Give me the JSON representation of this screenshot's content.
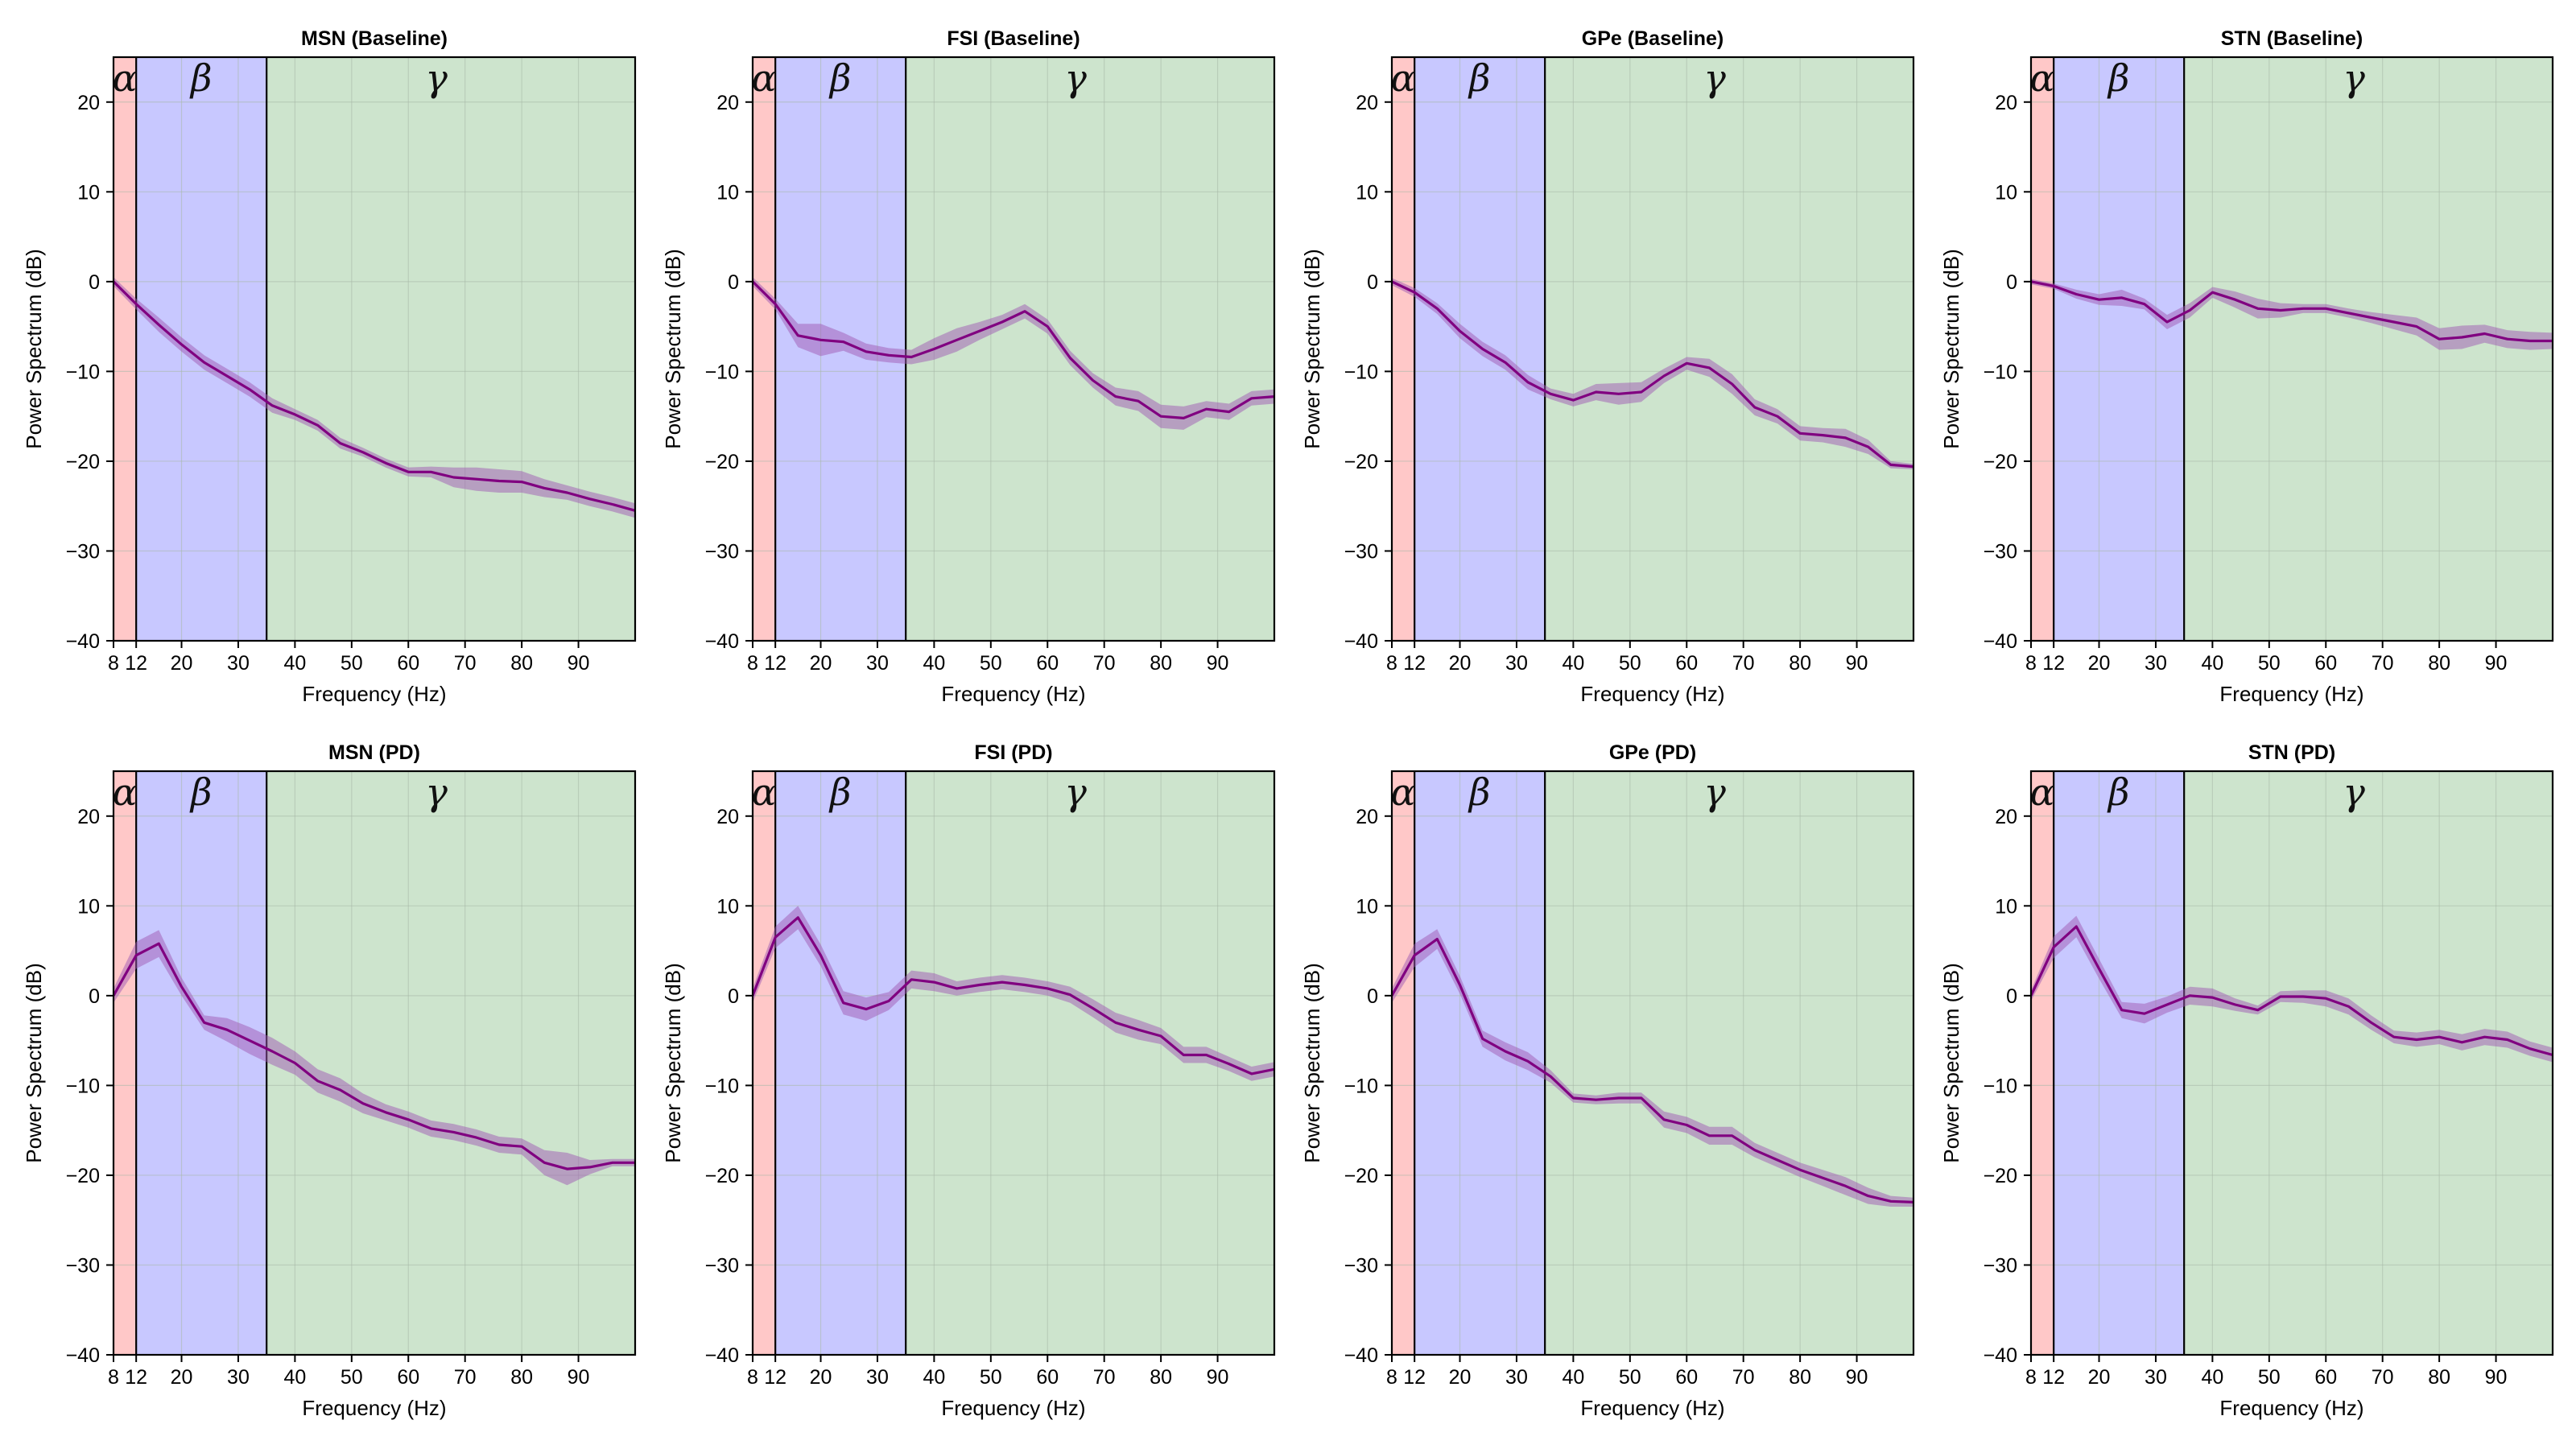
{
  "colors": {
    "alpha_band": "#ffc8c8",
    "beta_band": "#c8c8ff",
    "gamma_band": "#cde4cd",
    "line": "#800080",
    "shade": "#a05ab4",
    "grid": "#a9b9a9"
  },
  "band_labels": [
    "α",
    "β",
    "γ"
  ],
  "axes": {
    "xlabel": "Frequency (Hz)",
    "ylabel": "Power Spectrum (dB)",
    "xtick_labels": [
      "8",
      "12",
      "20",
      "30",
      "40",
      "50",
      "60",
      "70",
      "80",
      "90"
    ],
    "ytick_labels": [
      "20",
      "10",
      "0",
      "−10",
      "−20",
      "−30",
      "−40"
    ]
  },
  "chart_data": [
    {
      "type": "line",
      "title": "MSN (Baseline)",
      "xlabel": "Frequency (Hz)",
      "ylabel": "Power Spectrum (dB)",
      "xlim": [
        8,
        100
      ],
      "ylim": [
        -40,
        25
      ],
      "grid": true,
      "bands": [
        {
          "label": "α",
          "range": [
            8,
            12
          ]
        },
        {
          "label": "β",
          "range": [
            12,
            35
          ]
        },
        {
          "label": "γ",
          "range": [
            35,
            100
          ]
        }
      ],
      "series": [
        {
          "x": [
            8,
            12,
            16,
            20,
            24,
            28,
            32,
            36,
            40,
            44,
            48,
            52,
            56,
            60,
            64,
            68,
            72,
            76,
            80,
            84,
            88,
            92,
            96,
            100
          ],
          "y": [
            0,
            -2.5,
            -4.8,
            -7,
            -9,
            -10.5,
            -12,
            -13.8,
            -14.8,
            -16,
            -18,
            -19,
            -20.2,
            -21.2,
            -21.2,
            -21.8,
            -22,
            -22.2,
            -22.3,
            -23,
            -23.5,
            -24.2,
            -24.8,
            -25.5
          ],
          "spread": [
            0.5,
            0.6,
            0.8,
            0.8,
            0.8,
            0.8,
            0.8,
            0.8,
            0.6,
            0.6,
            0.6,
            0.5,
            0.5,
            0.5,
            0.6,
            1.1,
            1.3,
            1.3,
            1.2,
            1,
            0.8,
            0.8,
            0.8,
            0.8
          ]
        }
      ]
    },
    {
      "type": "line",
      "title": "FSI (Baseline)",
      "xlabel": "Frequency (Hz)",
      "ylabel": "Power Spectrum (dB)",
      "xlim": [
        8,
        100
      ],
      "ylim": [
        -40,
        25
      ],
      "grid": true,
      "bands": [
        {
          "label": "α",
          "range": [
            8,
            12
          ]
        },
        {
          "label": "β",
          "range": [
            12,
            35
          ]
        },
        {
          "label": "γ",
          "range": [
            35,
            100
          ]
        }
      ],
      "series": [
        {
          "x": [
            8,
            12,
            16,
            20,
            24,
            28,
            32,
            36,
            40,
            44,
            48,
            52,
            56,
            60,
            64,
            68,
            72,
            76,
            80,
            84,
            88,
            92,
            96,
            100
          ],
          "y": [
            0,
            -2.5,
            -6,
            -6.5,
            -6.7,
            -7.8,
            -8.2,
            -8.4,
            -7.5,
            -6.5,
            -5.5,
            -4.5,
            -3.3,
            -5,
            -8.5,
            -11,
            -12.8,
            -13.3,
            -15,
            -15.2,
            -14.2,
            -14.5,
            -13,
            -12.8
          ],
          "spread": [
            0.5,
            0.6,
            1.3,
            1.8,
            1,
            0.9,
            0.8,
            0.8,
            1.2,
            1.3,
            1,
            0.8,
            0.8,
            0.8,
            0.8,
            0.8,
            1,
            1.1,
            1.3,
            1.3,
            0.9,
            0.9,
            0.8,
            0.8
          ]
        }
      ]
    },
    {
      "type": "line",
      "title": "GPe (Baseline)",
      "xlabel": "Frequency (Hz)",
      "ylabel": "Power Spectrum (dB)",
      "xlim": [
        8,
        100
      ],
      "ylim": [
        -40,
        25
      ],
      "grid": true,
      "bands": [
        {
          "label": "α",
          "range": [
            8,
            12
          ]
        },
        {
          "label": "β",
          "range": [
            12,
            35
          ]
        },
        {
          "label": "γ",
          "range": [
            35,
            100
          ]
        }
      ],
      "series": [
        {
          "x": [
            8,
            12,
            16,
            20,
            24,
            28,
            32,
            36,
            40,
            44,
            48,
            52,
            56,
            60,
            64,
            68,
            72,
            76,
            80,
            84,
            88,
            92,
            96,
            100
          ],
          "y": [
            0,
            -1.2,
            -3,
            -5.5,
            -7.5,
            -9,
            -11.2,
            -12.5,
            -13.2,
            -12.3,
            -12.5,
            -12.3,
            -10.5,
            -9.1,
            -9.6,
            -11.4,
            -14,
            -15,
            -16.9,
            -17.1,
            -17.4,
            -18.4,
            -20.4,
            -20.6
          ],
          "spread": [
            0.4,
            0.5,
            0.6,
            0.8,
            0.8,
            0.8,
            0.8,
            0.6,
            0.7,
            0.9,
            1.2,
            1.1,
            0.8,
            0.7,
            1,
            1.1,
            0.9,
            0.8,
            0.8,
            0.8,
            1,
            0.8,
            0.4,
            0.3
          ]
        }
      ]
    },
    {
      "type": "line",
      "title": "STN (Baseline)",
      "xlabel": "Frequency (Hz)",
      "ylabel": "Power Spectrum (dB)",
      "xlim": [
        8,
        100
      ],
      "ylim": [
        -40,
        25
      ],
      "grid": true,
      "bands": [
        {
          "label": "α",
          "range": [
            8,
            12
          ]
        },
        {
          "label": "β",
          "range": [
            12,
            35
          ]
        },
        {
          "label": "γ",
          "range": [
            35,
            100
          ]
        }
      ],
      "series": [
        {
          "x": [
            8,
            12,
            16,
            20,
            24,
            28,
            32,
            36,
            40,
            44,
            48,
            52,
            56,
            60,
            64,
            68,
            72,
            76,
            80,
            84,
            88,
            92,
            96,
            100
          ],
          "y": [
            0,
            -0.5,
            -1.4,
            -2,
            -1.8,
            -2.5,
            -4.5,
            -3.2,
            -1.2,
            -2,
            -3,
            -3.2,
            -3,
            -3,
            -3.5,
            -4,
            -4.5,
            -5,
            -6.4,
            -6.2,
            -5.8,
            -6.4,
            -6.6,
            -6.6
          ],
          "spread": [
            0.3,
            0.3,
            0.5,
            0.6,
            0.9,
            0.6,
            0.8,
            0.8,
            0.6,
            0.9,
            1.1,
            0.8,
            0.5,
            0.5,
            0.5,
            0.6,
            0.8,
            1,
            1.2,
            1.3,
            1,
            1,
            1,
            0.9
          ]
        }
      ]
    },
    {
      "type": "line",
      "title": "MSN (PD)",
      "xlabel": "Frequency (Hz)",
      "ylabel": "Power Spectrum (dB)",
      "xlim": [
        8,
        100
      ],
      "ylim": [
        -40,
        25
      ],
      "grid": true,
      "bands": [
        {
          "label": "α",
          "range": [
            8,
            12
          ]
        },
        {
          "label": "β",
          "range": [
            12,
            35
          ]
        },
        {
          "label": "γ",
          "range": [
            35,
            100
          ]
        }
      ],
      "series": [
        {
          "x": [
            8,
            12,
            16,
            20,
            24,
            28,
            32,
            36,
            40,
            44,
            48,
            52,
            56,
            60,
            64,
            68,
            72,
            76,
            80,
            84,
            88,
            92,
            96,
            100
          ],
          "y": [
            0,
            4.5,
            5.8,
            1,
            -3,
            -3.8,
            -5,
            -6.2,
            -7.5,
            -9.5,
            -10.5,
            -12,
            -13,
            -13.8,
            -14.8,
            -15.2,
            -15.8,
            -16.6,
            -16.8,
            -18.6,
            -19.3,
            -19.1,
            -18.6,
            -18.6
          ],
          "spread": [
            0.8,
            1.5,
            1.5,
            1,
            0.8,
            1.3,
            1.5,
            1.5,
            1.3,
            1.3,
            1.3,
            1.1,
            0.9,
            0.9,
            0.9,
            0.9,
            0.9,
            0.9,
            0.9,
            1.4,
            1.8,
            0.8,
            0.4,
            0.4
          ]
        }
      ]
    },
    {
      "type": "line",
      "title": "FSI (PD)",
      "xlabel": "Frequency (Hz)",
      "ylabel": "Power Spectrum (dB)",
      "xlim": [
        8,
        100
      ],
      "ylim": [
        -40,
        25
      ],
      "grid": true,
      "bands": [
        {
          "label": "α",
          "range": [
            8,
            12
          ]
        },
        {
          "label": "β",
          "range": [
            12,
            35
          ]
        },
        {
          "label": "γ",
          "range": [
            35,
            100
          ]
        }
      ],
      "series": [
        {
          "x": [
            8,
            12,
            16,
            20,
            24,
            28,
            32,
            36,
            40,
            44,
            48,
            52,
            56,
            60,
            64,
            68,
            72,
            76,
            80,
            84,
            88,
            92,
            96,
            100
          ],
          "y": [
            0,
            6.5,
            8.7,
            4.5,
            -0.8,
            -1.5,
            -0.6,
            1.8,
            1.5,
            0.8,
            1.2,
            1.5,
            1.2,
            0.8,
            0.1,
            -1.4,
            -3,
            -3.8,
            -4.5,
            -6.6,
            -6.6,
            -7.6,
            -8.7,
            -8.2
          ],
          "spread": [
            0.8,
            1.2,
            1.3,
            1.2,
            1.3,
            1.3,
            1,
            1,
            1,
            0.8,
            0.8,
            0.8,
            0.8,
            0.8,
            0.9,
            1,
            1.1,
            1.1,
            0.9,
            0.9,
            0.9,
            0.8,
            0.8,
            0.8
          ]
        }
      ]
    },
    {
      "type": "line",
      "title": "GPe (PD)",
      "xlabel": "Frequency (Hz)",
      "ylabel": "Power Spectrum (dB)",
      "xlim": [
        8,
        100
      ],
      "ylim": [
        -40,
        25
      ],
      "grid": true,
      "bands": [
        {
          "label": "α",
          "range": [
            8,
            12
          ]
        },
        {
          "label": "β",
          "range": [
            12,
            35
          ]
        },
        {
          "label": "γ",
          "range": [
            35,
            100
          ]
        }
      ],
      "series": [
        {
          "x": [
            8,
            12,
            16,
            20,
            24,
            28,
            32,
            36,
            40,
            44,
            48,
            52,
            56,
            60,
            64,
            68,
            72,
            76,
            80,
            84,
            88,
            92,
            96,
            100
          ],
          "y": [
            0,
            4.5,
            6.3,
            1.2,
            -4.8,
            -6.2,
            -7.3,
            -9,
            -11.4,
            -11.6,
            -11.4,
            -11.4,
            -13.8,
            -14.4,
            -15.6,
            -15.6,
            -17.2,
            -18.3,
            -19.4,
            -20.3,
            -21.2,
            -22.3,
            -22.9,
            -23
          ],
          "spread": [
            0.8,
            1.3,
            1.1,
            1,
            0.9,
            1,
            1,
            0.7,
            0.5,
            0.5,
            0.6,
            0.6,
            0.9,
            0.9,
            1,
            1,
            0.8,
            0.8,
            0.8,
            0.9,
            1,
            0.9,
            0.6,
            0.5
          ]
        }
      ]
    },
    {
      "type": "line",
      "title": "STN (PD)",
      "xlabel": "Frequency (Hz)",
      "ylabel": "Power Spectrum (dB)",
      "xlim": [
        8,
        100
      ],
      "ylim": [
        -40,
        25
      ],
      "grid": true,
      "bands": [
        {
          "label": "α",
          "range": [
            8,
            12
          ]
        },
        {
          "label": "β",
          "range": [
            12,
            35
          ]
        },
        {
          "label": "γ",
          "range": [
            35,
            100
          ]
        }
      ],
      "series": [
        {
          "x": [
            8,
            12,
            16,
            20,
            24,
            28,
            32,
            36,
            40,
            44,
            48,
            52,
            56,
            60,
            64,
            68,
            72,
            76,
            80,
            84,
            88,
            92,
            96,
            100
          ],
          "y": [
            0,
            5.4,
            7.7,
            3,
            -1.6,
            -2,
            -1,
            0,
            -0.2,
            -1,
            -1.6,
            -0.1,
            -0.1,
            -0.3,
            -1.2,
            -3,
            -4.6,
            -4.9,
            -4.6,
            -5.2,
            -4.6,
            -4.9,
            -5.9,
            -6.6
          ],
          "spread": [
            0.6,
            1.2,
            1.2,
            1.1,
            0.9,
            1.1,
            0.9,
            1,
            1,
            0.7,
            0.5,
            0.6,
            0.7,
            0.9,
            0.9,
            0.8,
            0.7,
            0.8,
            0.8,
            0.9,
            0.9,
            0.9,
            0.8,
            0.8
          ]
        }
      ]
    }
  ]
}
